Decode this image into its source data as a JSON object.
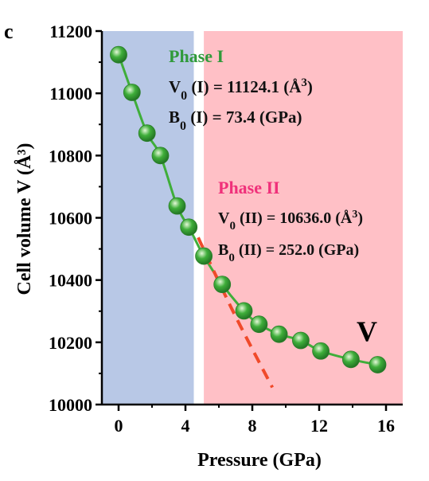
{
  "chart_data": {
    "type": "scatter",
    "panel_label": "c",
    "xlabel": "Pressure (GPa)",
    "ylabel": "Cell volume V (Å³)",
    "xlim": [
      -1,
      17
    ],
    "ylim": [
      10000,
      11200
    ],
    "x_ticks": [
      0,
      4,
      8,
      12,
      16
    ],
    "y_ticks": [
      10000,
      10200,
      10400,
      10600,
      10800,
      11000,
      11200
    ],
    "grid": false,
    "regions": [
      {
        "name": "Phase I",
        "x_range": [
          -1,
          4.5
        ],
        "color": "#b8c8e6"
      },
      {
        "name": "Phase II",
        "x_range": [
          5.1,
          17
        ],
        "color": "#ffc0c6"
      }
    ],
    "series": [
      {
        "name": "V",
        "marker_color": "#3fae3a",
        "x": [
          0.0,
          0.8,
          1.7,
          2.5,
          3.5,
          4.2,
          5.1,
          6.2,
          7.5,
          8.4,
          9.6,
          10.9,
          12.1,
          13.9,
          15.5
        ],
        "y": [
          11124,
          11003,
          10872,
          10800,
          10638,
          10570,
          10477,
          10386,
          10301,
          10258,
          10226,
          10206,
          10172,
          10145,
          10128
        ]
      }
    ],
    "fits": [
      {
        "phase": "Phase I",
        "style": "solid",
        "color": "#3fae3a",
        "V0": 11124.1,
        "B0": 73.4,
        "x_range": [
          0,
          4.5
        ]
      },
      {
        "phase": "Phase II",
        "style": "solid",
        "color": "#3fae3a",
        "V0": 10636.0,
        "B0": 252.0,
        "x_range": [
          4.5,
          15.5
        ]
      },
      {
        "phase": "Phase I extrapolation",
        "style": "dashed",
        "color": "#f04a2a",
        "x_range": [
          4.3,
          9.2
        ]
      }
    ],
    "annotations": {
      "phase1_title": "Phase I",
      "phase1_v0_prefix": "V",
      "phase1_v0_sub": "0",
      "phase1_v0_mid": " (I) = 11124.1 (Å",
      "phase1_v0_sup": "3",
      "phase1_v0_end": ")",
      "phase1_b0_prefix": "B",
      "phase1_b0_sub": "0",
      "phase1_b0_rest": " (I) = 73.4 (GPa)",
      "phase2_title": "Phase II",
      "phase2_v0_prefix": "V",
      "phase2_v0_sub": "0",
      "phase2_v0_mid": " (II) = 10636.0 (Å",
      "phase2_v0_sup": "3",
      "phase2_v0_end": ")",
      "phase2_b0_prefix": "B",
      "phase2_b0_sub": "0",
      "phase2_b0_rest": " (II) = 252.0 (GPa)",
      "series_label": "V"
    },
    "colors": {
      "phase1_title": "#2f9a3a",
      "phase2_title": "#f0307a",
      "text": "#111111"
    }
  }
}
